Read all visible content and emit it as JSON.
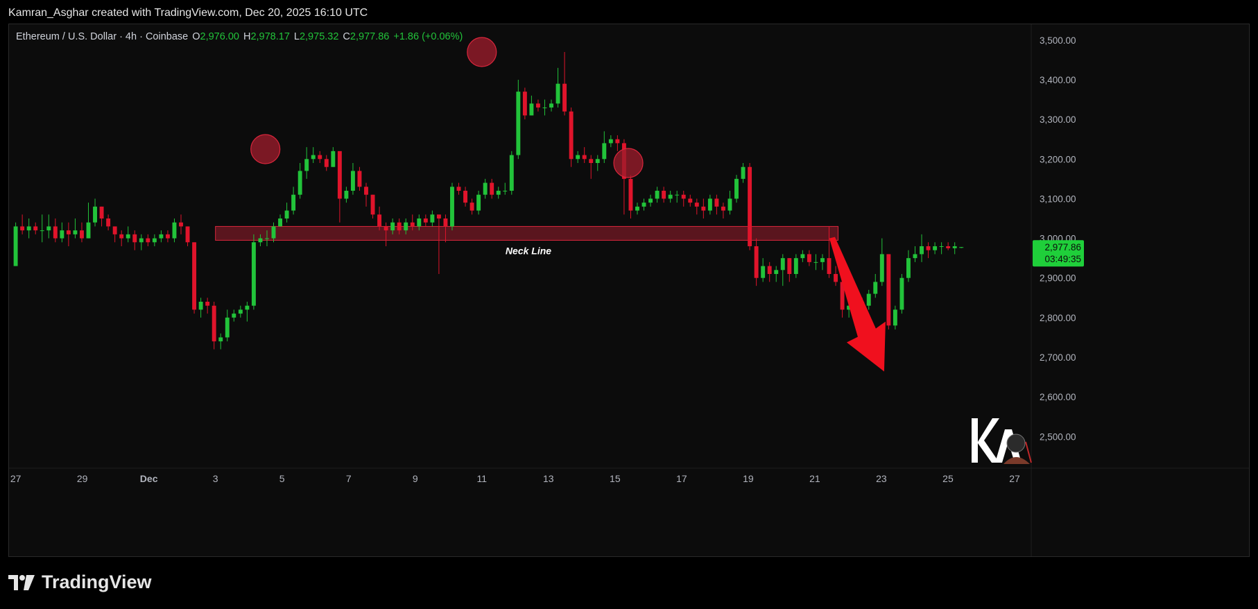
{
  "credit": "Kamran_Asghar created with TradingView.com, Dec 20, 2025 16:10 UTC",
  "symbol": {
    "name": "Ethereum / U.S. Dollar · 4h · Coinbase",
    "o_label": "O",
    "o": "2,976.00",
    "h_label": "H",
    "h": "2,978.17",
    "l_label": "L",
    "l": "2,975.32",
    "c_label": "C",
    "c": "2,977.86",
    "change": "+1.86 (+0.06%)"
  },
  "price_badge": {
    "price": "2,977.86",
    "countdown": "03:49:35"
  },
  "brand": "TradingView",
  "colors": {
    "up": "#22c33a",
    "down": "#e0142b",
    "zone": "#d9263c",
    "badge": "#1fcf3a"
  },
  "chart_data": {
    "type": "candlestick",
    "title": "",
    "ylim": [
      2420,
      3540
    ],
    "xlim": [
      -0.2,
      30.5
    ],
    "y_ticks": [
      2500,
      2600,
      2700,
      2800,
      2900,
      3000,
      3100,
      3200,
      3300,
      3400,
      3500
    ],
    "y_tick_labels": [
      "2,500.00",
      "2,600.00",
      "2,700.00",
      "2,800.00",
      "2,900.00",
      "3,000.00",
      "3,100.00",
      "3,200.00",
      "3,300.00",
      "3,400.00",
      "3,500.00"
    ],
    "x_ticks": [
      0,
      2,
      4,
      6,
      8,
      10,
      12,
      14,
      16,
      18,
      20,
      22,
      24,
      26,
      28,
      30
    ],
    "x_tick_labels": [
      "27",
      "29",
      "Dec",
      "3",
      "5",
      "7",
      "9",
      "11",
      "13",
      "15",
      "17",
      "19",
      "21",
      "23",
      "25",
      "27"
    ],
    "candles": [
      [
        2930,
        3030,
        3040,
        2930
      ],
      [
        3030,
        3020,
        3060,
        3010
      ],
      [
        3020,
        3030,
        3050,
        3000
      ],
      [
        3030,
        3020,
        3040,
        3010
      ],
      [
        3020,
        3020,
        3060,
        2990
      ],
      [
        3020,
        3030,
        3060,
        3000
      ],
      [
        3030,
        3000,
        3050,
        2990
      ],
      [
        3000,
        3020,
        3040,
        2990
      ],
      [
        3020,
        3010,
        3040,
        2980
      ],
      [
        3010,
        3020,
        3050,
        3000
      ],
      [
        3020,
        3000,
        3040,
        2990
      ],
      [
        3000,
        3040,
        3090,
        3000
      ],
      [
        3040,
        3080,
        3100,
        3030
      ],
      [
        3080,
        3050,
        3080,
        3030
      ],
      [
        3050,
        3030,
        3060,
        3020
      ],
      [
        3030,
        3010,
        3030,
        2990
      ],
      [
        3010,
        3000,
        3020,
        2980
      ],
      [
        3000,
        3010,
        3030,
        2990
      ],
      [
        3010,
        2990,
        3020,
        2970
      ],
      [
        2990,
        3000,
        3010,
        2970
      ],
      [
        3000,
        2990,
        3010,
        2980
      ],
      [
        2990,
        3000,
        3010,
        2980
      ],
      [
        3000,
        3010,
        3020,
        2990
      ],
      [
        3010,
        3000,
        3020,
        2990
      ],
      [
        3000,
        3040,
        3050,
        2990
      ],
      [
        3040,
        3030,
        3060,
        3010
      ],
      [
        3030,
        2990,
        3030,
        2980
      ],
      [
        2990,
        2820,
        2990,
        2810
      ],
      [
        2820,
        2840,
        2850,
        2800
      ],
      [
        2840,
        2830,
        2850,
        2810
      ],
      [
        2830,
        2740,
        2840,
        2720
      ],
      [
        2740,
        2750,
        2760,
        2720
      ],
      [
        2750,
        2800,
        2820,
        2740
      ],
      [
        2800,
        2810,
        2820,
        2790
      ],
      [
        2810,
        2820,
        2830,
        2800
      ],
      [
        2820,
        2830,
        2840,
        2790
      ],
      [
        2830,
        2990,
        3010,
        2820
      ],
      [
        2990,
        3000,
        3010,
        2980
      ],
      [
        3000,
        3000,
        3020,
        2980
      ],
      [
        3000,
        3030,
        3040,
        2990
      ],
      [
        3030,
        3050,
        3060,
        3030
      ],
      [
        3050,
        3070,
        3090,
        3040
      ],
      [
        3070,
        3110,
        3130,
        3060
      ],
      [
        3110,
        3170,
        3190,
        3100
      ],
      [
        3170,
        3200,
        3230,
        3150
      ],
      [
        3200,
        3210,
        3230,
        3190
      ],
      [
        3210,
        3200,
        3220,
        3190
      ],
      [
        3200,
        3180,
        3210,
        3170
      ],
      [
        3180,
        3220,
        3230,
        3180
      ],
      [
        3220,
        3100,
        3210,
        3040
      ],
      [
        3100,
        3120,
        3130,
        3090
      ],
      [
        3120,
        3170,
        3190,
        3110
      ],
      [
        3170,
        3130,
        3180,
        3120
      ],
      [
        3130,
        3110,
        3140,
        3080
      ],
      [
        3110,
        3060,
        3110,
        3050
      ],
      [
        3060,
        3030,
        3080,
        3020
      ],
      [
        3030,
        3020,
        3040,
        2980
      ],
      [
        3020,
        3040,
        3050,
        3010
      ],
      [
        3040,
        3020,
        3050,
        3010
      ],
      [
        3020,
        3040,
        3050,
        3010
      ],
      [
        3040,
        3030,
        3060,
        3020
      ],
      [
        3030,
        3050,
        3060,
        3020
      ],
      [
        3050,
        3040,
        3060,
        3030
      ],
      [
        3040,
        3060,
        3070,
        3030
      ],
      [
        3060,
        3050,
        3060,
        2910
      ],
      [
        3050,
        3030,
        3060,
        2990
      ],
      [
        3030,
        3130,
        3140,
        3020
      ],
      [
        3130,
        3120,
        3140,
        3110
      ],
      [
        3120,
        3090,
        3130,
        3080
      ],
      [
        3090,
        3070,
        3100,
        3060
      ],
      [
        3070,
        3110,
        3120,
        3060
      ],
      [
        3110,
        3140,
        3150,
        3100
      ],
      [
        3140,
        3110,
        3150,
        3100
      ],
      [
        3110,
        3120,
        3130,
        3100
      ],
      [
        3120,
        3120,
        3140,
        3110
      ],
      [
        3120,
        3210,
        3220,
        3110
      ],
      [
        3210,
        3370,
        3400,
        3200
      ],
      [
        3370,
        3310,
        3380,
        3300
      ],
      [
        3310,
        3340,
        3360,
        3310
      ],
      [
        3340,
        3330,
        3350,
        3320
      ],
      [
        3330,
        3330,
        3350,
        3310
      ],
      [
        3330,
        3340,
        3350,
        3320
      ],
      [
        3340,
        3390,
        3430,
        3330
      ],
      [
        3390,
        3320,
        3470,
        3310
      ],
      [
        3320,
        3200,
        3330,
        3180
      ],
      [
        3200,
        3210,
        3220,
        3190
      ],
      [
        3210,
        3200,
        3230,
        3190
      ],
      [
        3200,
        3190,
        3210,
        3150
      ],
      [
        3190,
        3200,
        3210,
        3170
      ],
      [
        3200,
        3240,
        3270,
        3190
      ],
      [
        3240,
        3250,
        3260,
        3230
      ],
      [
        3250,
        3240,
        3260,
        3220
      ],
      [
        3240,
        3150,
        3250,
        3060
      ],
      [
        3150,
        3070,
        3160,
        3050
      ],
      [
        3070,
        3080,
        3090,
        3060
      ],
      [
        3080,
        3090,
        3100,
        3070
      ],
      [
        3090,
        3100,
        3110,
        3080
      ],
      [
        3100,
        3120,
        3130,
        3090
      ],
      [
        3120,
        3100,
        3130,
        3090
      ],
      [
        3100,
        3110,
        3120,
        3090
      ],
      [
        3110,
        3110,
        3120,
        3090
      ],
      [
        3110,
        3100,
        3120,
        3080
      ],
      [
        3100,
        3090,
        3110,
        3080
      ],
      [
        3090,
        3080,
        3100,
        3060
      ],
      [
        3080,
        3070,
        3100,
        3050
      ],
      [
        3070,
        3100,
        3110,
        3060
      ],
      [
        3100,
        3080,
        3110,
        3060
      ],
      [
        3080,
        3070,
        3090,
        3050
      ],
      [
        3070,
        3100,
        3120,
        3060
      ],
      [
        3100,
        3150,
        3160,
        3090
      ],
      [
        3150,
        3180,
        3190,
        3140
      ],
      [
        3180,
        2980,
        3190,
        2970
      ],
      [
        2980,
        2900,
        3000,
        2880
      ],
      [
        2900,
        2930,
        2950,
        2890
      ],
      [
        2930,
        2910,
        2940,
        2890
      ],
      [
        2910,
        2920,
        2930,
        2890
      ],
      [
        2920,
        2950,
        2960,
        2880
      ],
      [
        2950,
        2910,
        2950,
        2890
      ],
      [
        2910,
        2950,
        2960,
        2900
      ],
      [
        2950,
        2960,
        2970,
        2940
      ],
      [
        2960,
        2940,
        2970,
        2930
      ],
      [
        2940,
        2940,
        2960,
        2920
      ],
      [
        2940,
        2950,
        2960,
        2920
      ],
      [
        2950,
        2910,
        3030,
        2900
      ],
      [
        2910,
        2890,
        2930,
        2880
      ],
      [
        2890,
        2820,
        2900,
        2800
      ],
      [
        2820,
        2830,
        2840,
        2800
      ],
      [
        2830,
        2840,
        2850,
        2820
      ],
      [
        2840,
        2830,
        2850,
        2820
      ],
      [
        2830,
        2860,
        2870,
        2820
      ],
      [
        2860,
        2890,
        2910,
        2850
      ],
      [
        2890,
        2960,
        3000,
        2880
      ],
      [
        2960,
        2780,
        2960,
        2770
      ],
      [
        2780,
        2820,
        2830,
        2770
      ],
      [
        2820,
        2900,
        2910,
        2810
      ],
      [
        2900,
        2950,
        2970,
        2890
      ],
      [
        2950,
        2960,
        2980,
        2940
      ],
      [
        2960,
        2980,
        3010,
        2940
      ],
      [
        2980,
        2970,
        2990,
        2950
      ],
      [
        2970,
        2980,
        2990,
        2960
      ],
      [
        2980,
        2980,
        2990,
        2960
      ],
      [
        2980,
        2975,
        2990,
        2970
      ],
      [
        2975,
        2980,
        2990,
        2960
      ],
      [
        2976,
        2977.86,
        2978.17,
        2975.32
      ]
    ],
    "neckline_zone": {
      "label": "Neck Line",
      "from": 2995,
      "to": 3030
    },
    "peak_markers": [
      {
        "x": 7.5,
        "y": 3225
      },
      {
        "x": 14.0,
        "y": 3470
      },
      {
        "x": 18.4,
        "y": 3190
      }
    ],
    "current_price": 2977.86
  }
}
